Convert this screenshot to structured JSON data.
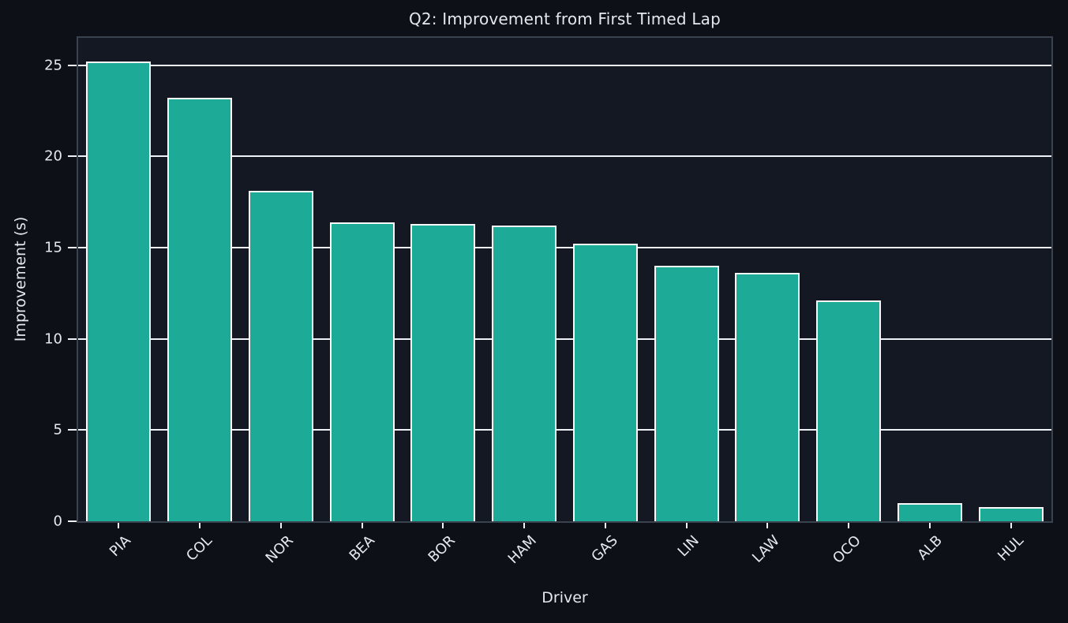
{
  "chart_data": {
    "type": "bar",
    "title": "Q2: Improvement from First Timed Lap",
    "xlabel": "Driver",
    "ylabel": "Improvement (s)",
    "categories": [
      "PIA",
      "COL",
      "NOR",
      "BEA",
      "BOR",
      "HAM",
      "GAS",
      "LIN",
      "LAW",
      "OCO",
      "ALB",
      "HUL"
    ],
    "values": [
      25.2,
      23.2,
      18.1,
      16.4,
      16.3,
      16.2,
      15.2,
      14.0,
      13.6,
      12.1,
      1.0,
      0.8
    ],
    "yticks": [
      0,
      5,
      10,
      15,
      20,
      25
    ],
    "ylim": [
      0,
      26.5
    ],
    "grid": true,
    "legend_position": "none",
    "bar_width_fraction": 0.8,
    "colors": {
      "bar_fill": "#1daa96",
      "bar_edge": "#f7f9fb",
      "gridline": "#eef1f5",
      "plot_background": "#141822",
      "figure_background": "#0d1016",
      "spine": "#3a4250",
      "text": "#e4e8ef"
    }
  }
}
